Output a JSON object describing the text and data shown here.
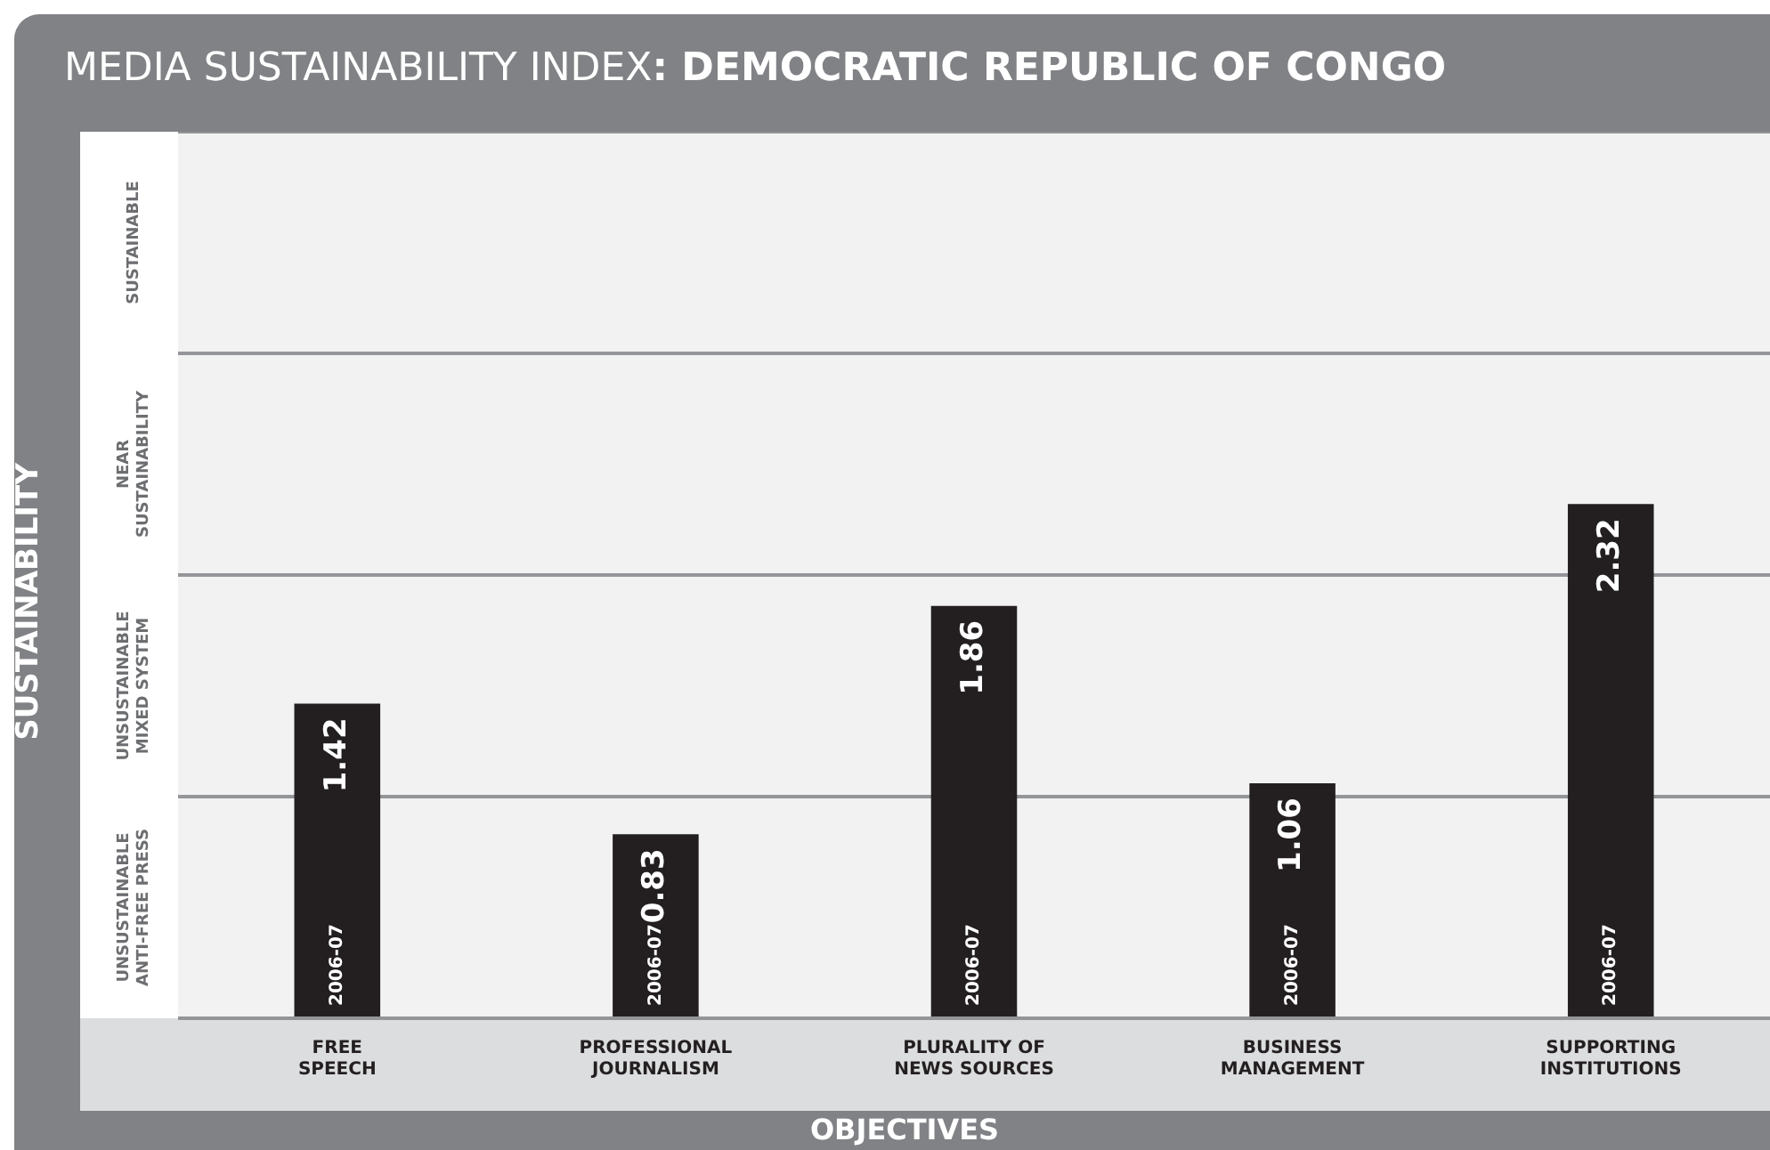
{
  "chart_data": {
    "type": "bar",
    "title": "MEDIA SUSTAINABILITY INDEX: DEMOCRATIC REPUBLIC OF CONGO",
    "xlabel": "OBJECTIVES",
    "ylabel": "SUSTAINABILITY",
    "categories": [
      "FREE\nSPEECH",
      "PROFESSIONAL\nJOURNALISM",
      "PLURALITY OF\nNEWS SOURCES",
      "BUSINESS\nMANAGEMENT",
      "SUPPORTING\nINSTITUTIONS"
    ],
    "series": [
      {
        "name": "2006-07",
        "color": "#231f20",
        "values": [
          1.42,
          0.83,
          1.86,
          1.06,
          2.32
        ]
      }
    ],
    "ylim": [
      0,
      4
    ],
    "yticks": [
      {
        "value": 0,
        "label": null
      },
      {
        "value": 1,
        "label": null
      },
      {
        "value": 2,
        "label": null
      },
      {
        "value": 3,
        "label": null
      },
      {
        "value": 4,
        "label": null
      }
    ],
    "bands": [
      {
        "axis": "y",
        "from": 0,
        "to": 1,
        "label": "UNSUSTAINABLE\nANTI-FREE PRESS",
        "color": "#f2f2f2"
      },
      {
        "axis": "y",
        "from": 1,
        "to": 2,
        "label": "UNSUSTAINABLE\nMIXED SYSTEM",
        "color": "#f2f2f2"
      },
      {
        "axis": "y",
        "from": 2,
        "to": 3,
        "label": "NEAR\nSUSTAINABILITY",
        "color": "#f2f2f2"
      },
      {
        "axis": "y",
        "from": 3,
        "to": 4,
        "label": "SUSTAINABLE",
        "color": "#f2f2f2"
      }
    ],
    "grid": "y",
    "tick_labels": "x",
    "data_labels": true,
    "legend": false
  }
}
